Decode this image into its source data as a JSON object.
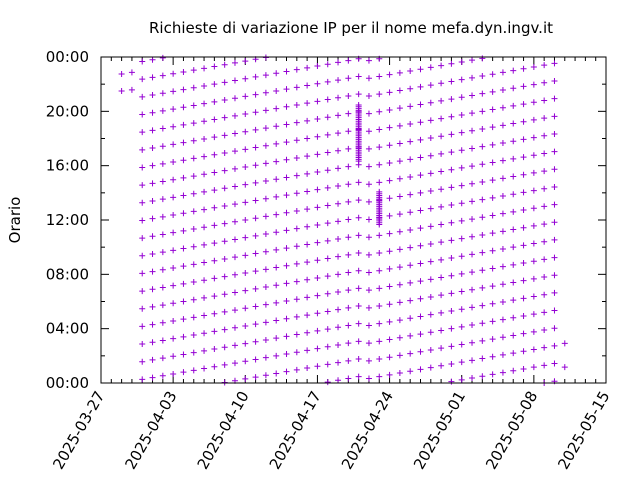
{
  "chart_data": {
    "type": "scatter",
    "title": "Richieste di variazione IP per il nome mefa.dyn.ingv.it",
    "xlabel": "",
    "ylabel": "Orario",
    "x_axis": {
      "type": "date",
      "range": [
        "2025-03-27",
        "2025-05-15"
      ]
    },
    "y_axis": {
      "type": "time-of-day",
      "range": [
        "00:00",
        "24:00"
      ]
    },
    "x_ticks": [
      "2025-03-27",
      "2025-04-03",
      "2025-04-10",
      "2025-04-17",
      "2025-04-24",
      "2025-05-01",
      "2025-05-08",
      "2025-05-15"
    ],
    "y_ticks": [
      "00:00",
      "04:00",
      "08:00",
      "12:00",
      "16:00",
      "20:00",
      "00:00"
    ],
    "grid": false,
    "legend": "none",
    "marker": "plus",
    "color": "#9400d3",
    "pattern": {
      "description": "Requests recur roughly every 78 minutes; each day's request times drift about 8 minutes later than the previous day, with a phase reset around 2025-04-22.",
      "first_day": "2025-03-29",
      "last_day": "2025-05-11",
      "interval_minutes": 78,
      "daily_shift_minutes": 8,
      "phase_reset_day": "2025-04-22",
      "sparse_days": {
        "2025-03-29": [
          "21:30",
          "22:45"
        ],
        "2025-03-30": [
          "21:35",
          "22:52"
        ],
        "2025-05-11": [
          "01:10",
          "02:55"
        ]
      },
      "clusters": [
        {
          "day": "2025-04-21",
          "from": "16:20",
          "to": "20:30"
        },
        {
          "day": "2025-04-23",
          "from": "11:40",
          "to": "14:10"
        }
      ]
    }
  }
}
